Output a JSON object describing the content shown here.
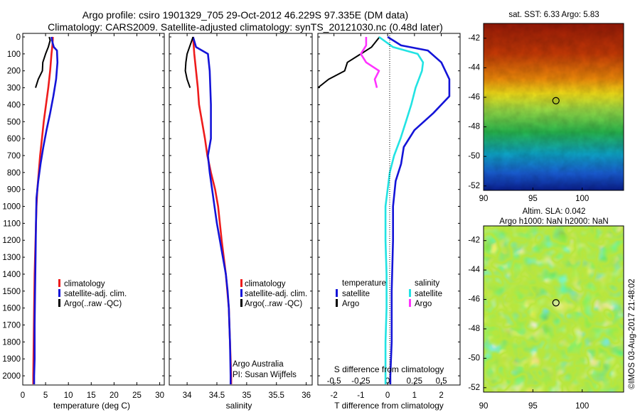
{
  "header": {
    "line1": "Argo profile: csiro 1901329_705 29-Oct-2012 46.229S 97.335E (DM data)",
    "line2": "Climatology: CARS2009. Satellite-adjusted climatology: synTS_20121030.nc (0.48d later)"
  },
  "legend": {
    "climatology": "climatology",
    "satellite": "satellite-adj. clim.",
    "argo": "Argo(..raw -QC)"
  },
  "credit": {
    "line1": "Argo Australia",
    "line2": "PI: Susan Wijffels"
  },
  "diff_legend": {
    "temperature": "temperature",
    "salinity": "salinity",
    "satellite": "satellite",
    "argo": "Argo"
  },
  "maps": {
    "sst_title": "sat. SST: 6.33 Argo: 5.83",
    "sla_title1": "Altim. SLA: 0.042",
    "sla_title2": "Argo h1000: NaN h2000: NaN",
    "lat_ticks": [
      "-42",
      "-44",
      "-46",
      "-48",
      "-50",
      "-52"
    ],
    "lon_ticks": [
      "90",
      "95",
      "100"
    ],
    "float_position": {
      "lon": 97.335,
      "lat": -46.229
    }
  },
  "timestamp": "©IMOS 03-Aug-2017 21:48:02",
  "colors": {
    "climatology": "#ee1c1c",
    "satellite": "#1414d8",
    "argo": "#000000",
    "sat_salinity": "#22e3e3",
    "argo_salinity": "#ff33ff"
  },
  "chart_data": [
    {
      "type": "line",
      "xlabel": "temperature (deg C)",
      "ylabel": "",
      "ylim": [
        2050,
        0
      ],
      "xlim": [
        0,
        31
      ],
      "xticks": [
        "0",
        "5",
        "10",
        "15",
        "20",
        "25",
        "30"
      ],
      "yticks": [
        "0",
        "100",
        "200",
        "300",
        "400",
        "500",
        "600",
        "700",
        "800",
        "900",
        "1000",
        "1100",
        "1200",
        "1300",
        "1400",
        "1500",
        "1600",
        "1700",
        "1800",
        "1900",
        "2000"
      ],
      "series": [
        {
          "name": "climatology",
          "depth": [
            0,
            50,
            100,
            200,
            300,
            400,
            500,
            600,
            700,
            800,
            900,
            1000,
            1200,
            1400,
            1600,
            1800,
            2000,
            2050
          ],
          "values": [
            6.6,
            6.5,
            6.3,
            6.0,
            5.6,
            5.1,
            4.6,
            4.2,
            3.8,
            3.5,
            3.2,
            3.0,
            2.8,
            2.6,
            2.5,
            2.4,
            2.3,
            2.3
          ]
        },
        {
          "name": "satellite-adj. clim.",
          "depth": [
            0,
            30,
            60,
            80,
            150,
            250,
            350,
            450,
            550,
            650,
            750,
            850,
            950,
            1100,
            1300,
            1500,
            1700,
            1900,
            2000,
            2050
          ],
          "values": [
            6.3,
            6.5,
            6.8,
            7.5,
            7.6,
            7.3,
            6.7,
            6.0,
            5.2,
            4.5,
            3.9,
            3.4,
            3.0,
            2.9,
            2.8,
            2.7,
            2.6,
            2.6,
            2.5,
            2.5
          ]
        },
        {
          "name": "Argo(..raw -QC)",
          "depth": [
            0,
            20,
            60,
            100,
            150,
            200,
            250,
            300
          ],
          "values": [
            5.8,
            6.0,
            5.6,
            5.0,
            4.4,
            4.3,
            3.4,
            2.8
          ]
        }
      ]
    },
    {
      "type": "line",
      "xlabel": "salinity",
      "ylabel": "",
      "ylim": [
        2050,
        0
      ],
      "xlim": [
        33.7,
        36.1
      ],
      "xticks": [
        "34",
        "34.5",
        "35",
        "35.5",
        "36"
      ],
      "series": [
        {
          "name": "climatology",
          "depth": [
            0,
            100,
            200,
            300,
            400,
            500,
            600,
            700,
            800,
            900,
            1000,
            1200,
            1400,
            1600,
            1800,
            2000,
            2050
          ],
          "values": [
            34.1,
            34.12,
            34.15,
            34.18,
            34.2,
            34.25,
            34.3,
            34.34,
            34.4,
            34.47,
            34.52,
            34.58,
            34.65,
            34.7,
            34.72,
            34.74,
            34.74
          ]
        },
        {
          "name": "satellite-adj. clim.",
          "depth": [
            0,
            60,
            100,
            200,
            400,
            600,
            700,
            800,
            900,
            1000,
            1100,
            1200,
            1300,
            1400,
            1500,
            1600,
            1800,
            2000,
            2050
          ],
          "values": [
            34.1,
            34.15,
            34.35,
            34.38,
            34.4,
            34.4,
            34.35,
            34.38,
            34.42,
            34.46,
            34.5,
            34.55,
            34.6,
            34.65,
            34.68,
            34.7,
            34.72,
            34.73,
            34.73
          ]
        },
        {
          "name": "Argo(..raw -QC)",
          "depth": [
            0,
            50,
            100,
            150,
            200,
            250,
            300
          ],
          "values": [
            34.1,
            34.05,
            34.0,
            33.98,
            33.97,
            34.0,
            34.05
          ]
        }
      ]
    },
    {
      "type": "line",
      "xlabel": "T difference from climatology",
      "xlabel_top": "S difference from climatology",
      "ylim": [
        2050,
        0
      ],
      "xlim": [
        -2.6,
        2.7
      ],
      "xticks": [
        "-2",
        "-1",
        "0",
        "1",
        "2"
      ],
      "xticks_top": [
        "-0.5",
        "-0.25",
        "0",
        "0.25",
        "0.5"
      ],
      "series": [
        {
          "name": "temperature satellite",
          "depth": [
            0,
            50,
            80,
            150,
            250,
            350,
            450,
            550,
            650,
            750,
            850,
            1000,
            1200,
            1500,
            1800,
            2000,
            2050
          ],
          "values": [
            0.0,
            0.5,
            1.5,
            2.0,
            2.3,
            2.3,
            1.7,
            1.0,
            0.6,
            0.5,
            0.3,
            0.2,
            0.2,
            0.15,
            0.15,
            0.1,
            0.1
          ]
        },
        {
          "name": "temperature Argo",
          "depth": [
            0,
            60,
            100,
            150,
            200,
            250,
            300
          ],
          "values": [
            -0.3,
            -0.6,
            -1.0,
            -1.5,
            -1.6,
            -2.2,
            -2.9
          ]
        },
        {
          "name": "salinity satellite",
          "depth": [
            0,
            60,
            100,
            150,
            200,
            300,
            400,
            500,
            600,
            700,
            800,
            900,
            1000,
            1200,
            1400,
            1600,
            1800,
            2000,
            2050
          ],
          "values": [
            -0.08,
            0.05,
            0.28,
            0.33,
            0.32,
            0.26,
            0.22,
            0.17,
            0.12,
            0.06,
            0.02,
            0.0,
            -0.02,
            -0.02,
            -0.01,
            -0.01,
            -0.02,
            -0.02,
            -0.02
          ]
        },
        {
          "name": "salinity Argo",
          "depth": [
            0,
            50,
            100,
            150,
            200,
            250,
            300
          ],
          "values": [
            -0.2,
            -0.2,
            -0.25,
            -0.2,
            -0.08,
            -0.12,
            -0.1
          ]
        }
      ]
    }
  ]
}
